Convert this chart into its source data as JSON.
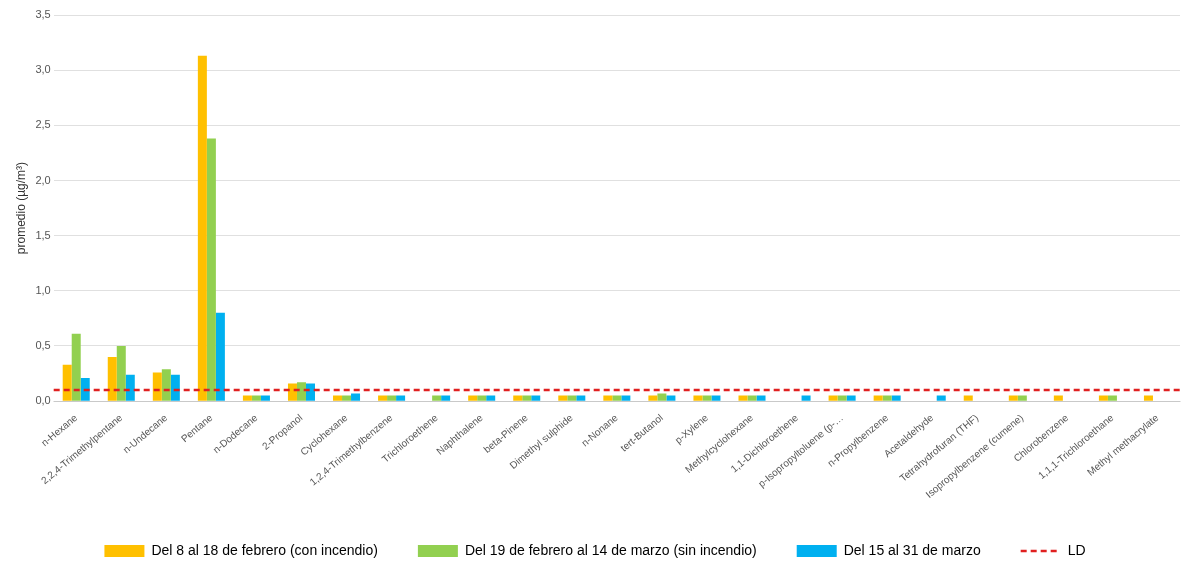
{
  "chart_data": {
    "type": "bar",
    "ylabel": "promedio (µg/m³)",
    "categories": [
      "n-Hexane",
      "2,2,4-Trimethylpentane",
      "n-Undecane",
      "Pentane",
      "n-Dodecane",
      "2-Propanol",
      "Cyclohexane",
      "1,2,4-Trimethylbenzene",
      "Trichloroethene",
      "Naphthalene",
      "beta-Pinene",
      "Dimethyl sulphide",
      "n-Nonane",
      "tert-Butanol",
      "p-Xylene",
      "Methylcyclohexane",
      "1,1-Dichloroethene",
      "p-Isopropyltoluene (p-…",
      "n-Propylbenzene",
      "Acetaldehyde",
      "Tetrahydrofuran (THF)",
      "Isopropylbenzene (cumene)",
      "Chlorobenzene",
      "1,1,1-Trichloroethane",
      "Methyl methacrylate"
    ],
    "series": [
      {
        "name": "Del 8 al 18 de febrero (con incendio)",
        "color": "#ffc000",
        "values": [
          0.33,
          0.4,
          0.26,
          3.13,
          0.05,
          0.16,
          0.05,
          0.05,
          null,
          0.05,
          0.05,
          0.05,
          0.05,
          0.05,
          0.05,
          0.05,
          null,
          0.05,
          0.05,
          null,
          0.05,
          0.05,
          0.05,
          0.05,
          0.05
        ]
      },
      {
        "name": "Del 19 de febrero al 14 de marzo (sin incendio)",
        "color": "#92d050",
        "values": [
          0.61,
          0.5,
          0.29,
          2.38,
          0.05,
          0.17,
          0.05,
          0.05,
          0.05,
          0.05,
          0.05,
          0.05,
          0.05,
          0.07,
          0.05,
          0.05,
          null,
          0.05,
          0.05,
          null,
          null,
          0.05,
          null,
          0.05,
          null
        ]
      },
      {
        "name": "Del 15 al 31 de marzo",
        "color": "#00b0f0",
        "values": [
          0.21,
          0.24,
          0.24,
          0.8,
          0.05,
          0.16,
          0.07,
          0.05,
          0.05,
          0.05,
          0.05,
          0.05,
          0.05,
          0.05,
          0.05,
          0.05,
          0.05,
          0.05,
          0.05,
          0.05,
          null,
          null,
          null,
          null,
          null
        ]
      }
    ],
    "ref_lines": [
      {
        "axis": "y",
        "value": 0.1,
        "label": "LD",
        "color": "#e02020",
        "line_style": "dashed"
      }
    ],
    "ylim": [
      0,
      3.5
    ],
    "yticks": [
      {
        "value": 0,
        "label": "0,0"
      },
      {
        "value": 0.5,
        "label": "0,5"
      },
      {
        "value": 1,
        "label": "1,0"
      },
      {
        "value": 1.5,
        "label": "1,5"
      },
      {
        "value": 2,
        "label": "2,0"
      },
      {
        "value": 2.5,
        "label": "2,5"
      },
      {
        "value": 3,
        "label": "3,0"
      },
      {
        "value": 3.5,
        "label": "3,5"
      }
    ],
    "grid": "y",
    "legend": "bottom"
  }
}
